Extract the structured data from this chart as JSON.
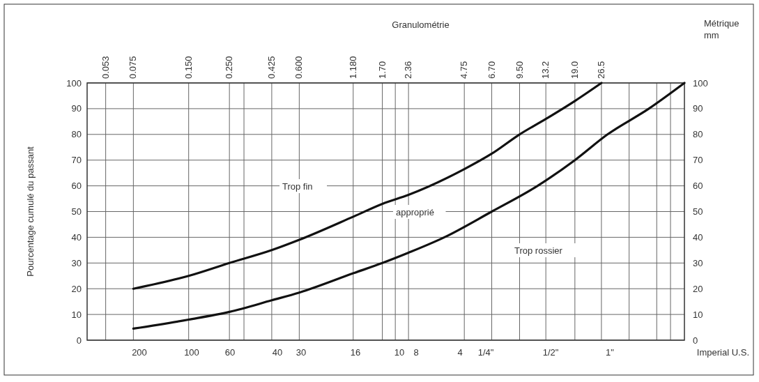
{
  "chart_data": {
    "type": "line",
    "xlabel": "Granulométrie",
    "ylabel": "Pourcentage cumulé du passant",
    "annotations": [
      "Métrique mm",
      "Trop fin",
      "approprié",
      "Trop rossier",
      "200",
      "100",
      "60",
      "40",
      "30",
      "16",
      "10",
      "8",
      "4",
      "1/4\"",
      "1/2\"",
      "1\"",
      "Imperial U.S."
    ],
    "log": "x",
    "grid": true,
    "line_style": "solid",
    "xlim": [
      0.042,
      75
    ],
    "xticks": [
      {
        "value": 0.053,
        "label": "0.053"
      },
      {
        "value": 0.075,
        "label": "0.075"
      },
      {
        "value": 0.15,
        "label": "0.150"
      },
      {
        "value": 0.25,
        "label": "0.250"
      },
      {
        "value": 0.3,
        "label": null
      },
      {
        "value": 0.425,
        "label": "0.425"
      },
      {
        "value": 0.6,
        "label": "0.600"
      },
      {
        "value": 1.18,
        "label": "1.180"
      },
      {
        "value": 1.7,
        "label": "1.70"
      },
      {
        "value": 2.0,
        "label": null
      },
      {
        "value": 2.36,
        "label": "2.36"
      },
      {
        "value": 4.75,
        "label": "4.75"
      },
      {
        "value": 6.7,
        "label": "6.70"
      },
      {
        "value": 9.5,
        "label": "9.50"
      },
      {
        "value": 13.2,
        "label": "13.2"
      },
      {
        "value": 19,
        "label": "19.0"
      },
      {
        "value": 26.5,
        "label": "26.5"
      },
      {
        "value": 37.5,
        "label": null
      },
      {
        "value": 53,
        "label": null
      },
      {
        "value": 63,
        "label": null
      }
    ],
    "ylim": [
      0,
      100
    ],
    "yticks": [
      0,
      10,
      20,
      30,
      40,
      50,
      60,
      70,
      80,
      90,
      100
    ],
    "y2lim": [
      0,
      100
    ],
    "y2ticks": [
      0,
      10,
      20,
      30,
      40,
      50,
      60,
      70,
      80,
      90,
      100
    ],
    "series": [
      {
        "color": "#111111",
        "x": [
          0.075,
          0.15,
          0.25,
          0.425,
          0.6,
          1.18,
          1.7,
          2.36,
          4.75,
          6.7,
          9.5,
          13.2,
          19,
          26.5
        ],
        "values": [
          20,
          25,
          30,
          35,
          39,
          48,
          53,
          56.5,
          66.5,
          72.5,
          80,
          86,
          93,
          100
        ]
      },
      {
        "color": "#111111",
        "x": [
          0.075,
          0.15,
          0.25,
          0.425,
          0.6,
          1.18,
          1.7,
          2.36,
          3.7,
          6.7,
          11.9,
          19,
          28.6,
          48,
          75
        ],
        "values": [
          4.5,
          8,
          11,
          15.5,
          18.5,
          26,
          30,
          34,
          40,
          50,
          60,
          70,
          80,
          90,
          100
        ]
      }
    ]
  }
}
